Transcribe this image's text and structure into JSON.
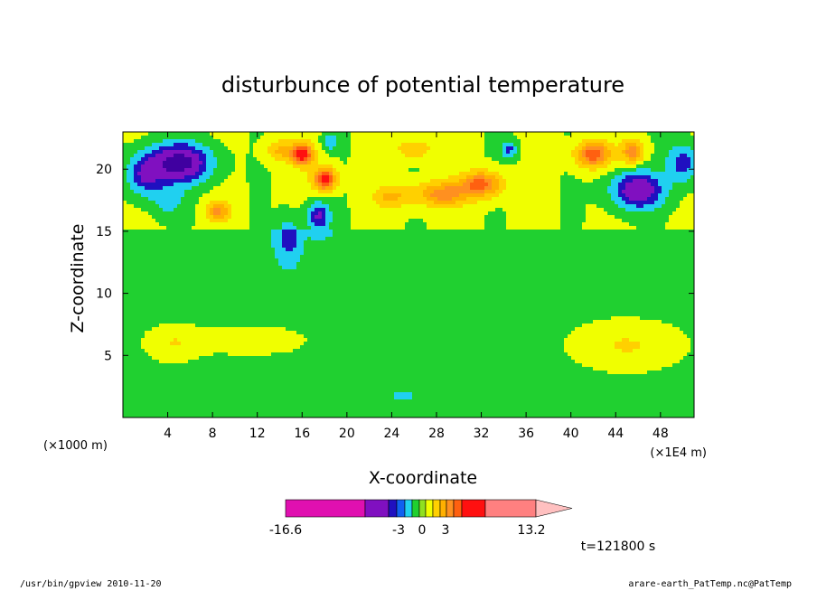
{
  "chart_data": {
    "type": "heatmap",
    "title": "disturbunce of potential temperature",
    "xlabel": "X-coordinate",
    "ylabel": "Z-coordinate",
    "x_unit_left": "(×1000 m)",
    "x_unit_right": "(×1E4 m)",
    "xlim": [
      0,
      51
    ],
    "ylim": [
      0,
      23
    ],
    "x_ticks": [
      "4",
      "8",
      "12",
      "16",
      "20",
      "24",
      "28",
      "32",
      "36",
      "40",
      "44",
      "48"
    ],
    "y_ticks": [
      "5",
      "10",
      "15",
      "20"
    ],
    "time_label": "t=121800 s",
    "colorbar": {
      "labels": [
        "-16.6",
        "-3",
        "0",
        "3",
        "13.2"
      ],
      "colors": [
        "#e010b0",
        "#8010c0",
        "#2010c0",
        "#1060f0",
        "#20d0f0",
        "#20d030",
        "#90e020",
        "#f0ff00",
        "#ffd000",
        "#ffb000",
        "#ff9020",
        "#ff6010",
        "#ff1010",
        "#ff8080",
        "#ffc0c0"
      ],
      "range": [
        -16.6,
        13.2
      ]
    },
    "levels": [
      {
        "value": -2.5,
        "color": "#8010c0"
      },
      {
        "value": -1.5,
        "color": "#2010c0"
      },
      {
        "value": -0.8,
        "color": "#20d0f0"
      },
      {
        "value": -0.1,
        "color": "#20d030"
      },
      {
        "value": 0.5,
        "color": "#f0ff00"
      },
      {
        "value": 1.1,
        "color": "#ffd000"
      },
      {
        "value": 1.8,
        "color": "#ffb000"
      },
      {
        "value": 2.4,
        "color": "#ff9020"
      },
      {
        "value": 3.0,
        "color": "#ff6010"
      },
      {
        "value": 3.6,
        "color": "#ff1010"
      }
    ],
    "field_features": [
      {
        "x": 5,
        "z": 20.5,
        "amp": -3.6,
        "sx": 2.6,
        "sz": 1.5
      },
      {
        "x": 2,
        "z": 19.5,
        "amp": -2.0,
        "sx": 1.5,
        "sz": 1.5
      },
      {
        "x": 4,
        "z": 17.5,
        "amp": -1.0,
        "sx": 1.5,
        "sz": 1.2
      },
      {
        "x": 46,
        "z": 18.3,
        "amp": -3.0,
        "sx": 2.2,
        "sz": 1.4
      },
      {
        "x": 50,
        "z": 20.5,
        "amp": -1.8,
        "sx": 1.4,
        "sz": 1.5
      },
      {
        "x": 17.5,
        "z": 16.2,
        "amp": -2.2,
        "sx": 1.0,
        "sz": 1.1
      },
      {
        "x": 14.8,
        "z": 14.5,
        "amp": -1.4,
        "sx": 0.9,
        "sz": 1.6
      },
      {
        "x": 34.5,
        "z": 21.6,
        "amp": -1.5,
        "sx": 0.7,
        "sz": 0.7
      },
      {
        "x": 18.5,
        "z": 22.2,
        "amp": -1.3,
        "sx": 0.6,
        "sz": 0.6
      },
      {
        "x": 16,
        "z": 21.2,
        "amp": 3.6,
        "sx": 1.0,
        "sz": 0.9
      },
      {
        "x": 18,
        "z": 19.2,
        "amp": 3.6,
        "sx": 1.0,
        "sz": 0.9
      },
      {
        "x": 14,
        "z": 21.5,
        "amp": 1.4,
        "sx": 1.2,
        "sz": 0.8
      },
      {
        "x": 42,
        "z": 21.2,
        "amp": 3.0,
        "sx": 1.5,
        "sz": 1.0
      },
      {
        "x": 45.5,
        "z": 21.4,
        "amp": 2.3,
        "sx": 1.0,
        "sz": 0.9
      },
      {
        "x": 32,
        "z": 18.8,
        "amp": 2.7,
        "sx": 1.8,
        "sz": 1.0
      },
      {
        "x": 28.5,
        "z": 18.0,
        "amp": 2.2,
        "sx": 2.4,
        "sz": 1.0
      },
      {
        "x": 24,
        "z": 17.8,
        "amp": 1.4,
        "sx": 1.6,
        "sz": 0.9
      },
      {
        "x": 8.5,
        "z": 16.6,
        "amp": 2.0,
        "sx": 1.0,
        "sz": 0.8
      },
      {
        "x": 26,
        "z": 21.6,
        "amp": 1.2,
        "sx": 1.6,
        "sz": 0.7
      },
      {
        "x": 4.5,
        "z": 6,
        "amp": 0.8,
        "sx": 2.6,
        "sz": 1.5
      },
      {
        "x": 11.5,
        "z": 6.2,
        "amp": 0.8,
        "sx": 4.5,
        "sz": 1.1
      },
      {
        "x": 45,
        "z": 5.8,
        "amp": 0.9,
        "sx": 5.0,
        "sz": 2.0
      },
      {
        "x": 25,
        "z": 1.8,
        "amp": -0.8,
        "sx": 1.0,
        "sz": 0.4
      }
    ]
  },
  "footer_left": "/usr/bin/gpview   2010-11-20",
  "footer_right": "arare-earth_PatTemp.nc@PatTemp"
}
